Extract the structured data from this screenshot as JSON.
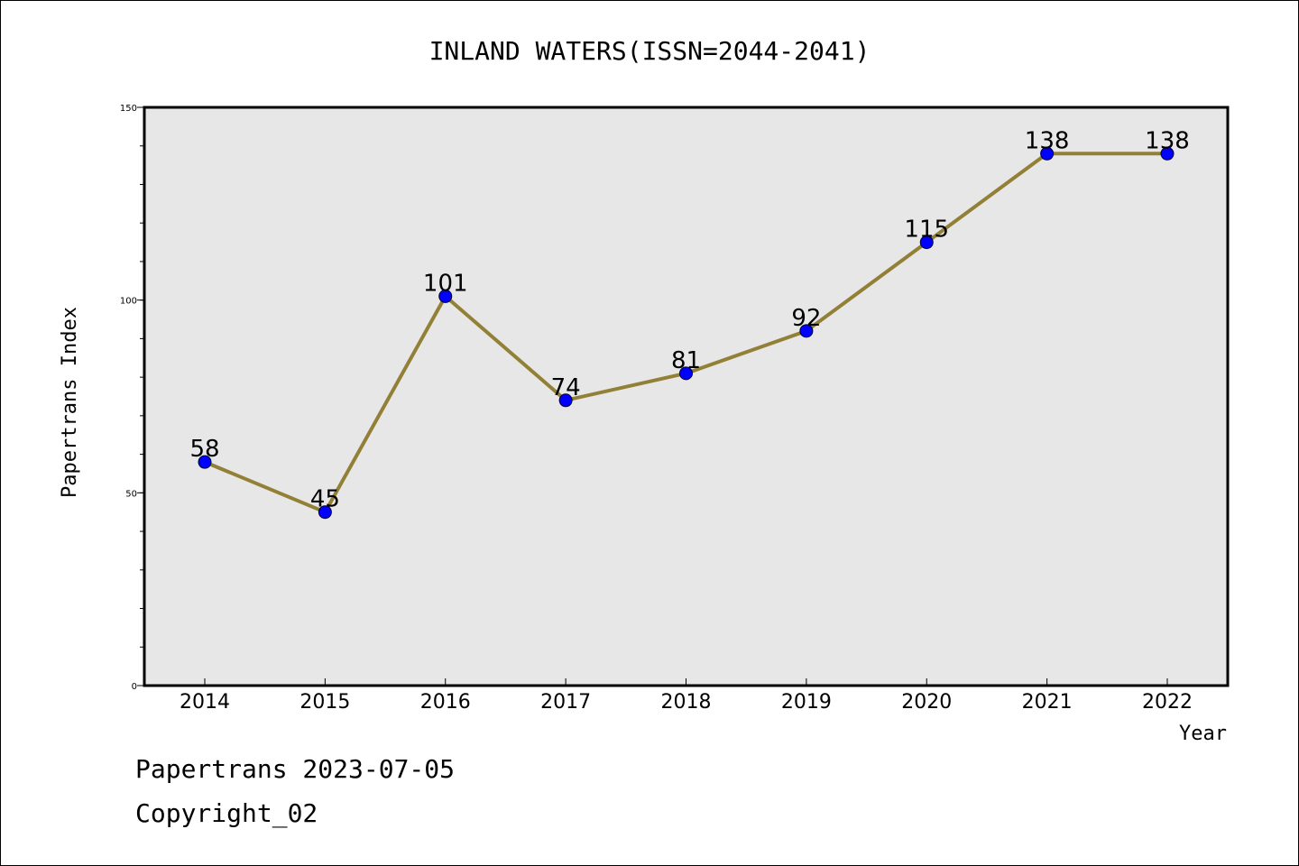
{
  "chart_data": {
    "type": "line",
    "title": "INLAND WATERS(ISSN=2044-2041)",
    "xlabel": "Year",
    "ylabel": "Papertrans Index",
    "categories": [
      "2014",
      "2015",
      "2016",
      "2017",
      "2018",
      "2019",
      "2020",
      "2021",
      "2022"
    ],
    "series": [
      {
        "values": [
          58,
          45,
          101,
          74,
          81,
          92,
          115,
          138,
          138
        ],
        "line_color": "#928037",
        "marker_color": "#0000ff"
      }
    ],
    "ylim": [
      0,
      150
    ],
    "y_ticks": [
      0,
      50,
      100,
      150
    ],
    "y_minor_step": 10,
    "grid": false,
    "plot_background": "#e7e7e7"
  },
  "footer": {
    "line1": "Papertrans 2023-07-05",
    "line2": "Copyright_02"
  }
}
